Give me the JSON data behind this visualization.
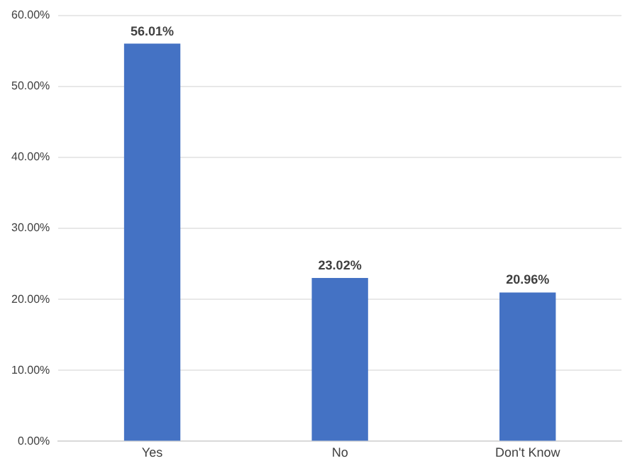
{
  "chart_data": {
    "type": "bar",
    "categories": [
      "Yes",
      "No",
      "Don't Know"
    ],
    "values": [
      56.01,
      23.02,
      20.96
    ],
    "color": "#4472c4",
    "value_labels": [
      "56.01%",
      "23.02%",
      "20.96%"
    ],
    "ylim": [
      0,
      60
    ],
    "yticks": [
      {
        "value": 0,
        "label": "0.00%"
      },
      {
        "value": 10,
        "label": "10.00%"
      },
      {
        "value": 20,
        "label": "20.00%"
      },
      {
        "value": 30,
        "label": "30.00%"
      },
      {
        "value": 40,
        "label": "40.00%"
      },
      {
        "value": 50,
        "label": "50.00%"
      },
      {
        "value": 60,
        "label": "60.00%"
      }
    ],
    "grid": "y"
  }
}
